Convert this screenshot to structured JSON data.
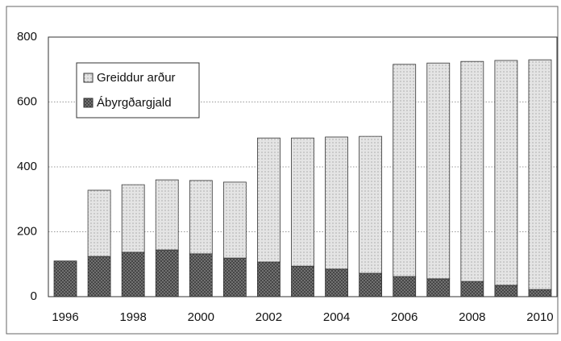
{
  "chart_data": {
    "type": "stacked_bar",
    "categories": [
      "1996",
      null,
      "1998",
      null,
      "2000",
      null,
      "2002",
      null,
      "2004",
      null,
      "2006",
      null,
      "2008",
      null,
      "2010"
    ],
    "series": [
      {
        "name": "Ábyrgðargjald",
        "color": "#7a7a7a",
        "values": [
          110,
          124,
          137,
          144,
          132,
          119,
          107,
          94,
          85,
          72,
          62,
          55,
          47,
          35,
          22
        ]
      },
      {
        "name": "Greiddur arður",
        "color": "#e4e4e4",
        "values": [
          0,
          204,
          208,
          216,
          226,
          234,
          382,
          395,
          407,
          422,
          654,
          665,
          678,
          693,
          708
        ]
      }
    ],
    "ylim": [
      0,
      800
    ],
    "yticks": [
      0,
      200,
      400,
      600,
      800
    ],
    "grid": true,
    "legend": "upper left"
  }
}
